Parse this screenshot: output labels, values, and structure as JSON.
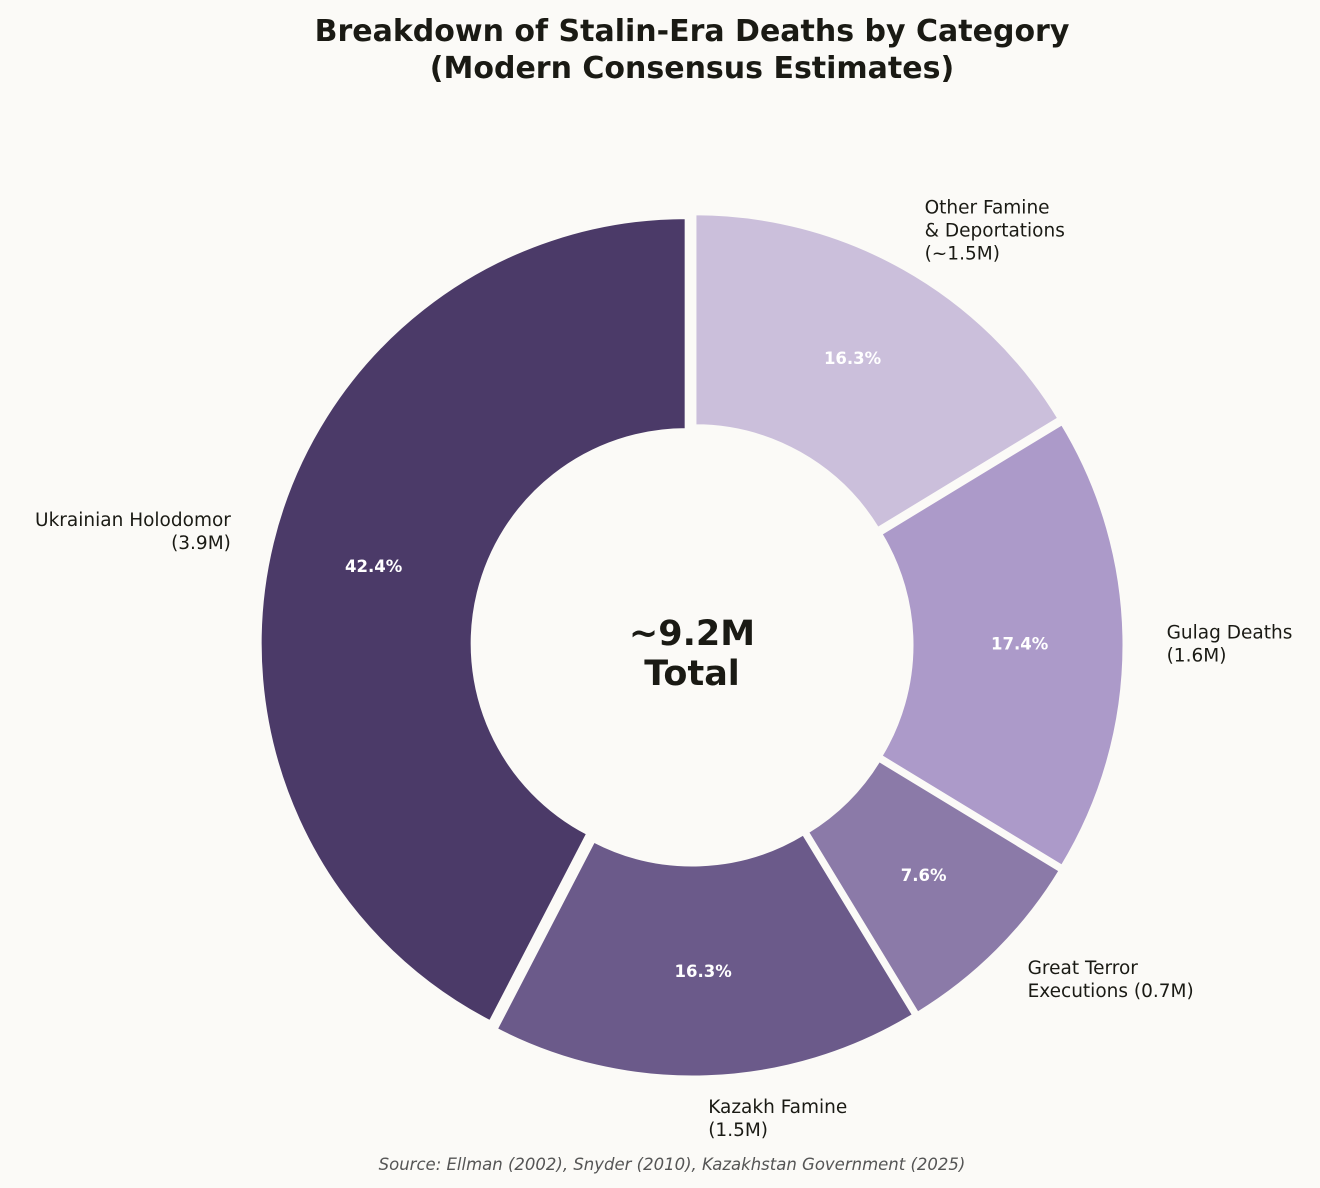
{
  "chart_data": {
    "type": "pie",
    "donut": true,
    "title": "Breakdown of Stalin-Era Deaths by Category\n(Modern Consensus Estimates)",
    "center_label": "~9.2M\nTotal",
    "source": "Source: Ellman (2002), Snyder (2010), Kazakhstan Government (2025)",
    "units": "millions of deaths",
    "start_angle_deg": 90,
    "direction": "counterclockwise",
    "slices": [
      {
        "label": "Ukrainian Holodomor\n(3.9M)",
        "value": 3.9,
        "percent_label": "42.4%",
        "color": "#4b3a68"
      },
      {
        "label": "Kazakh Famine\n(1.5M)",
        "value": 1.5,
        "percent_label": "16.3%",
        "color": "#6b5a8a"
      },
      {
        "label": "Great Terror\nExecutions (0.7M)",
        "value": 0.7,
        "percent_label": "7.6%",
        "color": "#8b7aa8"
      },
      {
        "label": "Gulag Deaths\n(1.6M)",
        "value": 1.6,
        "percent_label": "17.4%",
        "color": "#ac9ac9"
      },
      {
        "label": "Other Famine\n& Deportations\n(~1.5M)",
        "value": 1.5,
        "percent_label": "16.3%",
        "color": "#cbbfdb"
      }
    ],
    "background": "#fbfaf7"
  }
}
